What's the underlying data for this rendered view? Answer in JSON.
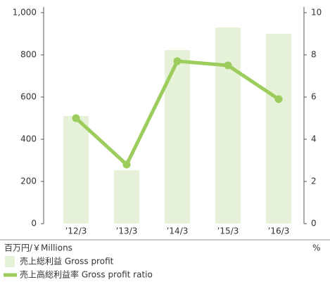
{
  "chart_data": {
    "type": "bar_line",
    "categories": [
      "’12/3",
      "’13/3",
      "’14/3",
      "’15/3",
      "’16/3"
    ],
    "series": [
      {
        "name": "売上総利益 Gross profit",
        "color": "#e6f2d8",
        "values": [
          510,
          253,
          823,
          930,
          900
        ]
      },
      {
        "name": "売上高総利益率 Gross profit ratio",
        "color": "#9ccc5c",
        "axis": "y2",
        "values": [
          5.0,
          2.8,
          7.7,
          7.5,
          5.9
        ]
      }
    ],
    "ylim": [
      0,
      1000
    ],
    "yticks": [
      0,
      200,
      400,
      600,
      800,
      {
        "value": 1000,
        "label": "1,000"
      }
    ],
    "y2lim": [
      0,
      10
    ],
    "y2ticks": [
      0,
      2,
      4,
      6,
      8,
      10
    ],
    "ylabel": "百万円/￥Millions",
    "y2label": "%"
  }
}
